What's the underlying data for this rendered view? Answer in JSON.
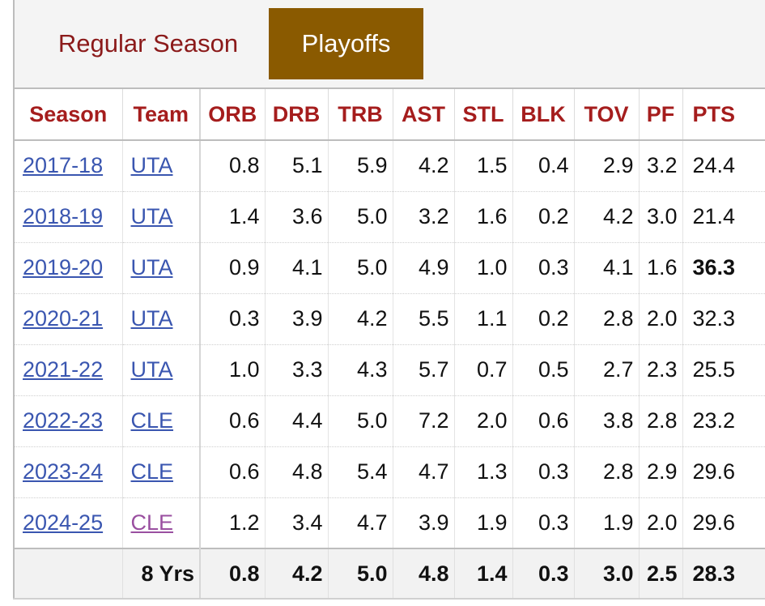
{
  "tabs": {
    "regular_label": "Regular Season",
    "playoffs_label": "Playoffs",
    "active": "Playoffs"
  },
  "columns": [
    "Season",
    "Team",
    "ORB",
    "DRB",
    "TRB",
    "AST",
    "STL",
    "BLK",
    "TOV",
    "PF",
    "PTS"
  ],
  "rows": [
    {
      "season": "2017-18",
      "team": "UTA",
      "orb": "0.8",
      "drb": "5.1",
      "trb": "5.9",
      "ast": "4.2",
      "stl": "1.5",
      "blk": "0.4",
      "tov": "2.9",
      "pf": "3.2",
      "pts": "24.4"
    },
    {
      "season": "2018-19",
      "team": "UTA",
      "orb": "1.4",
      "drb": "3.6",
      "trb": "5.0",
      "ast": "3.2",
      "stl": "1.6",
      "blk": "0.2",
      "tov": "4.2",
      "pf": "3.0",
      "pts": "21.4"
    },
    {
      "season": "2019-20",
      "team": "UTA",
      "orb": "0.9",
      "drb": "4.1",
      "trb": "5.0",
      "ast": "4.9",
      "stl": "1.0",
      "blk": "0.3",
      "tov": "4.1",
      "pf": "1.6",
      "pts": "36.3"
    },
    {
      "season": "2020-21",
      "team": "UTA",
      "orb": "0.3",
      "drb": "3.9",
      "trb": "4.2",
      "ast": "5.5",
      "stl": "1.1",
      "blk": "0.2",
      "tov": "2.8",
      "pf": "2.0",
      "pts": "32.3"
    },
    {
      "season": "2021-22",
      "team": "UTA",
      "orb": "1.0",
      "drb": "3.3",
      "trb": "4.3",
      "ast": "5.7",
      "stl": "0.7",
      "blk": "0.5",
      "tov": "2.7",
      "pf": "2.3",
      "pts": "25.5"
    },
    {
      "season": "2022-23",
      "team": "CLE",
      "orb": "0.6",
      "drb": "4.4",
      "trb": "5.0",
      "ast": "7.2",
      "stl": "2.0",
      "blk": "0.6",
      "tov": "3.8",
      "pf": "2.8",
      "pts": "23.2"
    },
    {
      "season": "2023-24",
      "team": "CLE",
      "orb": "0.6",
      "drb": "4.8",
      "trb": "5.4",
      "ast": "4.7",
      "stl": "1.3",
      "blk": "0.3",
      "tov": "2.8",
      "pf": "2.9",
      "pts": "29.6"
    },
    {
      "season": "2024-25",
      "team": "CLE",
      "orb": "1.2",
      "drb": "3.4",
      "trb": "4.7",
      "ast": "3.9",
      "stl": "1.9",
      "blk": "0.3",
      "tov": "1.9",
      "pf": "2.0",
      "pts": "29.6"
    }
  ],
  "footer": {
    "label": "8 Yrs",
    "orb": "0.8",
    "drb": "4.2",
    "trb": "5.0",
    "ast": "4.8",
    "stl": "1.4",
    "blk": "0.3",
    "tov": "3.0",
    "pf": "2.5",
    "pts": "28.3"
  },
  "colors": {
    "tab_active_bg": "#8a5a00",
    "header_text": "#a51d1d",
    "link": "#3a56b0",
    "visited_link": "#9a4fa0"
  }
}
